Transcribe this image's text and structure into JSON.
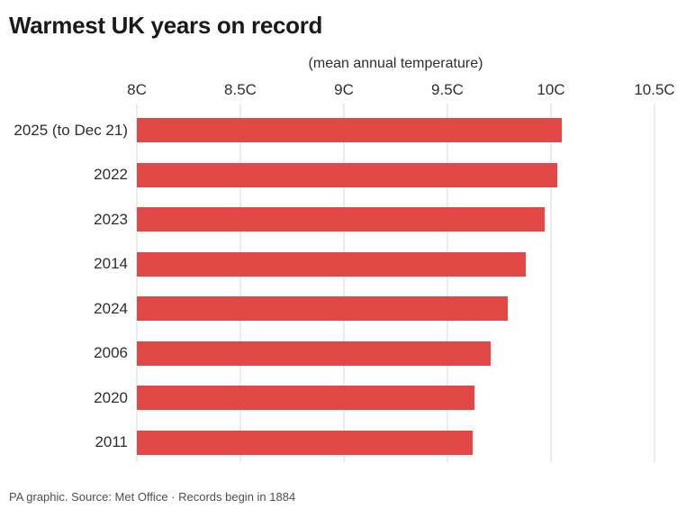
{
  "title": "Warmest UK years on record",
  "subtitle": "(mean annual temperature)",
  "footer": "PA graphic. Source: Met Office · Records begin in 1884",
  "colors": {
    "bar": "#e04745",
    "gridline": "#d8d8d8",
    "title_text": "#1a1a1a",
    "label_text": "#2e2e2e",
    "footer_text": "#4f4f4f",
    "background": "#ffffff"
  },
  "chart_data": {
    "type": "bar",
    "orientation": "horizontal",
    "title": "Warmest UK years on record",
    "subtitle": "(mean annual temperature)",
    "categories": [
      "2025 (to Dec 21)",
      "2022",
      "2023",
      "2014",
      "2024",
      "2006",
      "2020",
      "2011"
    ],
    "values": [
      10.05,
      10.03,
      9.97,
      9.88,
      9.79,
      9.71,
      9.63,
      9.62
    ],
    "unit": "C",
    "xlabel": "",
    "ylabel": "",
    "xlim": [
      8,
      10.5
    ],
    "xticks": [
      "8C",
      "8.5C",
      "9C",
      "9.5C",
      "10C",
      "10.5C"
    ],
    "xtick_values": [
      8,
      8.5,
      9,
      9.5,
      10,
      10.5
    ],
    "grid": "vertical",
    "legend": "none",
    "bar_color": "#e04745"
  }
}
